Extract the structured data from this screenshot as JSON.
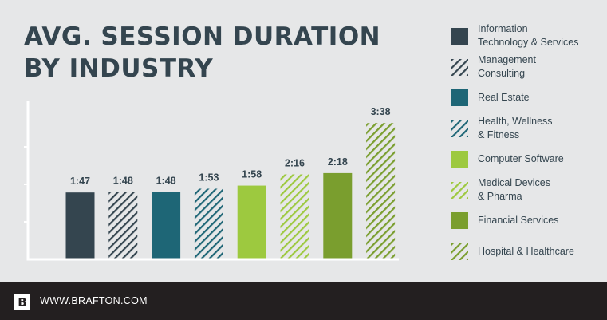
{
  "page": {
    "title_lines": [
      "AVG. SESSION DURATION",
      "BY INDUSTRY"
    ],
    "footer": {
      "logo_letter": "B",
      "website": "WWW.BRAFTON.COM"
    }
  },
  "colors": {
    "background": "#e6e7e8",
    "text": "#34454f",
    "footer": "#231f20"
  },
  "chart_data": {
    "type": "bar",
    "title": "AVG. SESSION DURATION BY INDUSTRY",
    "unit": "minutes:seconds",
    "categories": [
      "Information Technology & Services",
      "Management Consulting",
      "Real Estate",
      "Health, Wellness & Fitness",
      "Computer Software",
      "Medical Devices & Pharma",
      "Financial Services",
      "Hospital & Healthcare"
    ],
    "legend_lines": [
      [
        "Information",
        "Technology & Services"
      ],
      [
        "Management",
        "Consulting"
      ],
      [
        "Real Estate"
      ],
      [
        "Health, Wellness",
        "& Fitness"
      ],
      [
        "Computer Software"
      ],
      [
        "Medical Devices",
        "& Pharma"
      ],
      [
        "Financial Services"
      ],
      [
        "Hospital & Healthcare"
      ]
    ],
    "value_labels": [
      "1:47",
      "1:48",
      "1:48",
      "1:53",
      "1:58",
      "2:16",
      "2:18",
      "3:38"
    ],
    "values_seconds": [
      107,
      108,
      108,
      113,
      118,
      136,
      138,
      218
    ],
    "colors": [
      "#34454f",
      "#34454f",
      "#1e6676",
      "#1e6676",
      "#9dc93f",
      "#9dc93f",
      "#7a9e2e",
      "#7a9e2e"
    ],
    "patterns": [
      "solid",
      "hatched",
      "solid",
      "hatched",
      "solid",
      "hatched",
      "solid",
      "hatched"
    ],
    "legend_position": "right",
    "grid": false,
    "y_axis_labels": false
  }
}
